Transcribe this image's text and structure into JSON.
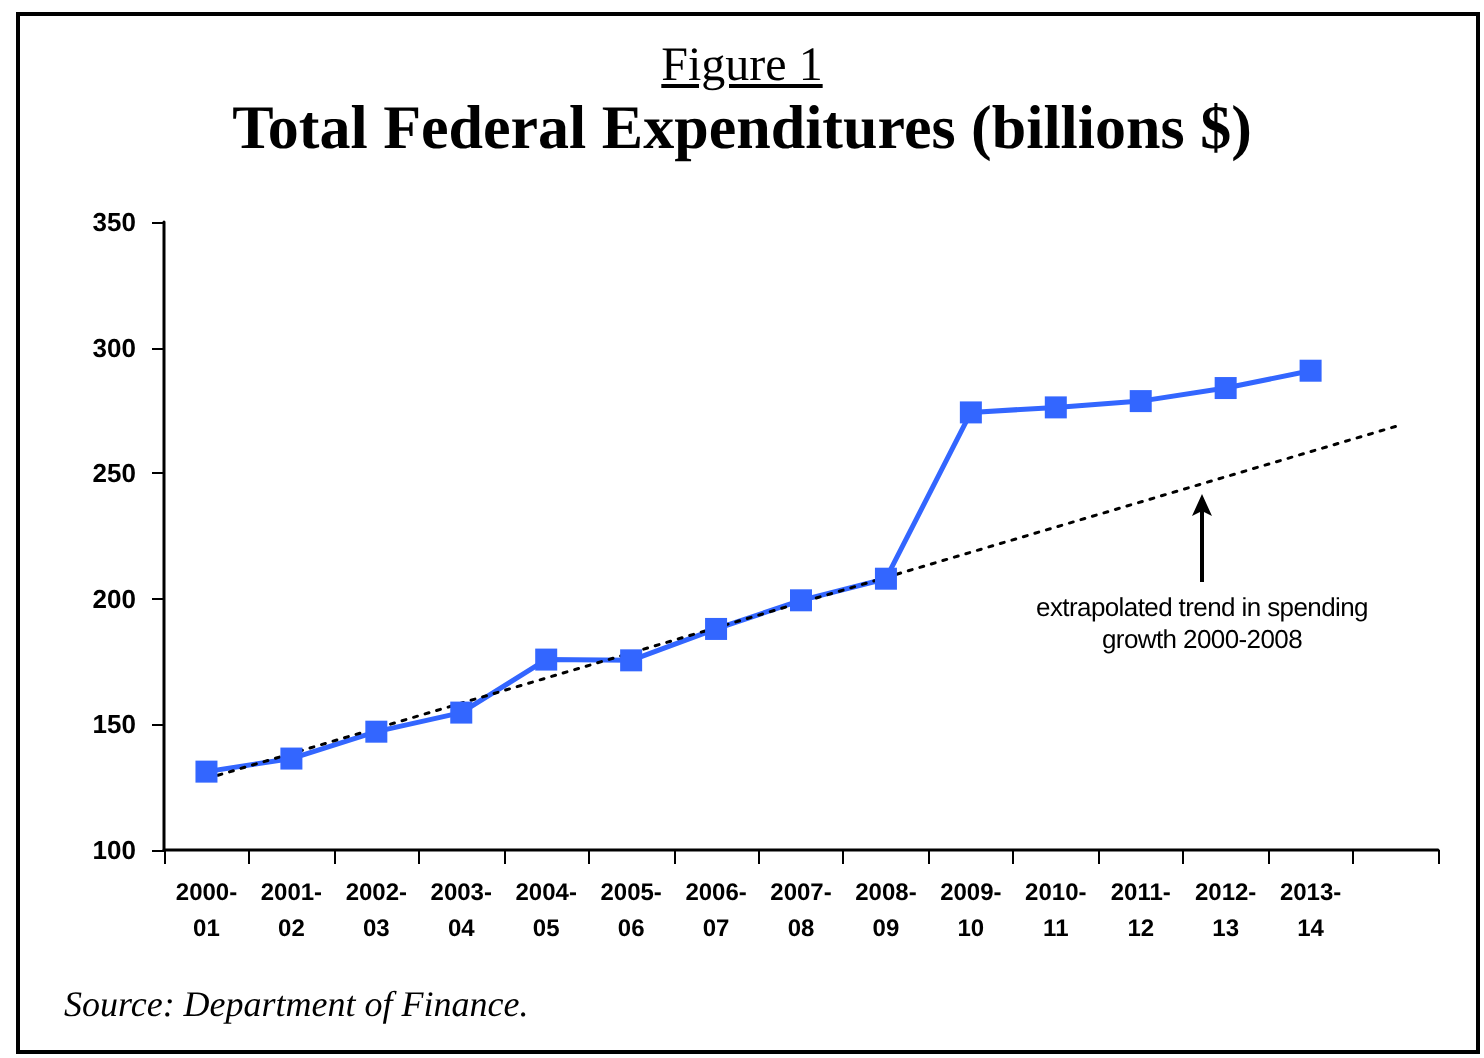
{
  "chart_data": {
    "type": "line",
    "subtitle": "Figure 1",
    "title": "Total Federal Expenditures (billions $)",
    "categories": [
      "2000-01",
      "2001-02",
      "2002-03",
      "2003-04",
      "2004-05",
      "2005-06",
      "2006-07",
      "2007-08",
      "2008-09",
      "2009-10",
      "2010-11",
      "2011-12",
      "2012-13",
      "2013-14",
      null
    ],
    "series": [
      {
        "color": "#3366ff",
        "marker": "square",
        "line_style": "solid",
        "values": [
          131.2,
          136.4,
          147.1,
          154.7,
          175.8,
          175.5,
          188,
          199.4,
          208,
          274.2,
          276.2,
          278.7,
          283.9,
          290.8,
          null
        ]
      },
      {
        "color": "#000000",
        "marker": "none",
        "line_style": "dotted",
        "values": [
          128.4,
          null,
          null,
          null,
          null,
          null,
          null,
          null,
          null,
          null,
          null,
          null,
          null,
          null,
          268.6
        ]
      }
    ],
    "ylim": [
      100,
      350
    ],
    "yticks": [
      100,
      150,
      200,
      250,
      300,
      350
    ],
    "grid": false,
    "annotations": [
      "extrapolated trend in spending growth 2000-2008",
      "Source: Department of Finance."
    ]
  }
}
